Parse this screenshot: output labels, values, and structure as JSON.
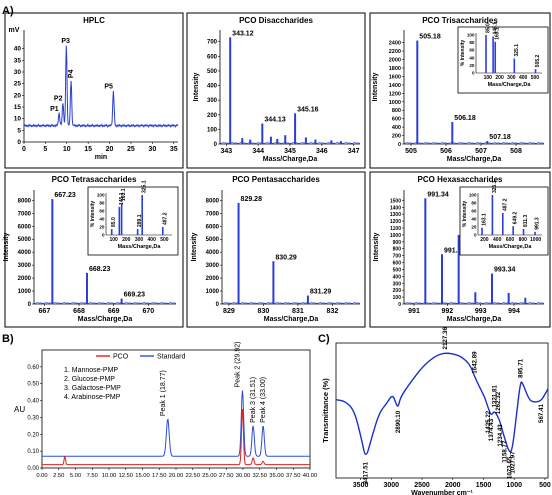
{
  "section_a_label": "A)",
  "section_b_label": "B)",
  "section_c_label": "C)",
  "chart_data": [
    {
      "id": "hplc",
      "type": "line",
      "title": "HPLC",
      "xlabel": "min",
      "ylabel": "mV",
      "xlim": [
        0,
        36
      ],
      "ylim": [
        0,
        48
      ],
      "xticks": [
        0,
        5,
        10,
        15,
        20,
        25,
        30,
        35
      ],
      "yticks": [
        0,
        5,
        10,
        15,
        20,
        25,
        30,
        35,
        40
      ],
      "baseline": 7,
      "peaks": [
        {
          "label": "P1",
          "x": 8.2,
          "y": 12.5
        },
        {
          "label": "P2",
          "x": 9.1,
          "y": 17
        },
        {
          "label": "P3",
          "x": 9.9,
          "y": 41.5
        },
        {
          "label": "P4",
          "x": 11.0,
          "y": 26.5
        },
        {
          "label": "P5",
          "x": 20.9,
          "y": 22
        }
      ]
    },
    {
      "id": "disacch",
      "type": "bar",
      "title": "PCO Disaccharides",
      "xlabel": "Mass/Charge,Da",
      "ylabel": "Intensity",
      "xlim": [
        342.8,
        347.2
      ],
      "ylim": [
        0,
        780
      ],
      "xticks": [
        343,
        344,
        345,
        346,
        347
      ],
      "yticks": [
        0,
        100,
        200,
        300,
        400,
        500,
        600,
        700
      ],
      "peaks": [
        {
          "x": 343.12,
          "y": 730,
          "label": "343.12"
        },
        {
          "x": 344.13,
          "y": 140,
          "label": "344.13"
        },
        {
          "x": 345.16,
          "y": 210,
          "label": "345.16"
        },
        {
          "x": 343.5,
          "y": 40
        },
        {
          "x": 343.75,
          "y": 30
        },
        {
          "x": 344.4,
          "y": 50
        },
        {
          "x": 344.6,
          "y": 35
        },
        {
          "x": 344.85,
          "y": 60
        },
        {
          "x": 345.5,
          "y": 45
        },
        {
          "x": 345.8,
          "y": 30
        },
        {
          "x": 346.3,
          "y": 25
        },
        {
          "x": 346.6,
          "y": 20
        }
      ]
    },
    {
      "id": "trisacch",
      "type": "bar",
      "title": "PCO Trisaccharides",
      "xlabel": "Mass/Charge,Da",
      "ylabel": "Intensity",
      "xlim": [
        504.8,
        508.8
      ],
      "ylim": [
        0,
        2700
      ],
      "xticks": [
        505,
        506,
        507,
        508
      ],
      "yticks": [
        0,
        200,
        400,
        600,
        800,
        1000,
        1200,
        1400,
        1600,
        1800,
        2000,
        2200,
        2400
      ],
      "peaks": [
        {
          "x": 505.18,
          "y": 2450,
          "label": "505.18"
        },
        {
          "x": 506.18,
          "y": 520,
          "label": "506.18"
        },
        {
          "x": 507.18,
          "y": 70,
          "label": "507.18"
        }
      ],
      "inset": {
        "xlabel": "Mass/Charge,Da",
        "ylabel": "% Intensity",
        "xlim": [
          0,
          560
        ],
        "ylim": [
          0,
          105
        ],
        "xticks": [
          100,
          200,
          300,
          400,
          500
        ],
        "yticks": [
          0,
          20,
          40,
          60,
          80,
          100
        ],
        "peaks": [
          {
            "x": 85.0,
            "y": 100,
            "label": "85.0"
          },
          {
            "x": 145.1,
            "y": 96,
            "label": "145.1"
          },
          {
            "x": 163.1,
            "y": 82,
            "label": "163.1"
          },
          {
            "x": 325.1,
            "y": 38,
            "label": "325.1"
          },
          {
            "x": 505.2,
            "y": 10,
            "label": "505.2"
          }
        ]
      }
    },
    {
      "id": "tetrasacch",
      "type": "bar",
      "title": "PCO Tetrasaccharides",
      "xlabel": "Mass/Charge,Da",
      "ylabel": "Intensity",
      "xlim": [
        666.7,
        670.8
      ],
      "ylim": [
        0,
        8800
      ],
      "xticks": [
        667,
        668,
        669,
        670
      ],
      "yticks": [
        0,
        1000,
        2000,
        3000,
        4000,
        5000,
        6000,
        7000,
        8000
      ],
      "peaks": [
        {
          "x": 667.23,
          "y": 8100,
          "label": "667.23"
        },
        {
          "x": 668.23,
          "y": 2400,
          "label": "668.23"
        },
        {
          "x": 669.23,
          "y": 420,
          "label": "669.23"
        }
      ],
      "inset": {
        "xlabel": "Mass/Charge,Da",
        "ylabel": "% Intensity",
        "xlim": [
          40,
          560
        ],
        "ylim": [
          0,
          105
        ],
        "xticks": [
          100,
          200,
          300,
          400,
          500
        ],
        "yticks": [
          0,
          20,
          40,
          60,
          80,
          100
        ],
        "peaks": [
          {
            "x": 85.0,
            "y": 15,
            "label": "85.0"
          },
          {
            "x": 145.1,
            "y": 70,
            "label": "145.1"
          },
          {
            "x": 163.1,
            "y": 80,
            "label": "163.1"
          },
          {
            "x": 289.1,
            "y": 15,
            "label": "289.1"
          },
          {
            "x": 325.1,
            "y": 100,
            "label": "325.1"
          },
          {
            "x": 487.2,
            "y": 20,
            "label": "487.2"
          }
        ]
      }
    },
    {
      "id": "pentasacch",
      "type": "bar",
      "title": "PCO Pentasaccharides",
      "xlabel": "Mass/Charge,Da",
      "ylabel": "Intensity",
      "xlim": [
        828.8,
        832.8
      ],
      "ylim": [
        0,
        8800
      ],
      "xticks": [
        829,
        830,
        831,
        832
      ],
      "yticks": [
        0,
        1000,
        2000,
        3000,
        4000,
        5000,
        6000,
        7000,
        8000
      ],
      "peaks": [
        {
          "x": 829.28,
          "y": 7800,
          "label": "829.28"
        },
        {
          "x": 830.29,
          "y": 3300,
          "label": "830.29"
        },
        {
          "x": 831.29,
          "y": 650,
          "label": "831.29"
        },
        {
          "x": 832.2,
          "y": 60
        }
      ]
    },
    {
      "id": "hexasacch",
      "type": "bar",
      "title": "PCO Hexasaccharides",
      "xlabel": "Mass/Charge,Da",
      "ylabel": "Intensity",
      "xlim": [
        990.7,
        994.9
      ],
      "ylim": [
        0,
        1650
      ],
      "xticks": [
        991,
        992,
        993,
        994
      ],
      "yticks": [
        0,
        100,
        200,
        300,
        400,
        500,
        600,
        700,
        800,
        900,
        1000,
        1100,
        1200,
        1300,
        1400,
        1500
      ],
      "peaks": [
        {
          "x": 991.34,
          "y": 1530,
          "label": "991.34"
        },
        {
          "x": 991.84,
          "y": 720,
          "label": "991.84"
        },
        {
          "x": 992.34,
          "y": 1000,
          "label": "992.34"
        },
        {
          "x": 992.84,
          "y": 170
        },
        {
          "x": 993.34,
          "y": 440,
          "label": "993.34"
        },
        {
          "x": 993.84,
          "y": 160
        },
        {
          "x": 994.34,
          "y": 90
        }
      ],
      "inset": {
        "xlabel": "Mass/Charge,Da",
        "ylabel": "% Intensity",
        "xlim": [
          100,
          1100
        ],
        "ylim": [
          0,
          105
        ],
        "xticks": [
          200,
          400,
          600,
          800,
          1000
        ],
        "yticks": [
          0,
          20,
          40,
          60,
          80,
          100
        ],
        "peaks": [
          {
            "x": 163.1,
            "y": 18,
            "label": "163.1"
          },
          {
            "x": 325.1,
            "y": 100,
            "label": "325.1"
          },
          {
            "x": 487.2,
            "y": 55,
            "label": "487.2"
          },
          {
            "x": 649.2,
            "y": 22,
            "label": "649.2"
          },
          {
            "x": 811.3,
            "y": 15,
            "label": "811.3"
          },
          {
            "x": 991.3,
            "y": 8,
            "label": "991.3"
          }
        ]
      }
    },
    {
      "id": "pmp",
      "type": "line",
      "title": "",
      "xlabel": "",
      "ylabel": "AU",
      "xlim": [
        0,
        40
      ],
      "ylim": [
        0,
        0.7
      ],
      "xticks": [
        0,
        2.5,
        5,
        7.5,
        10,
        12.5,
        15,
        17.5,
        20,
        22.5,
        25,
        27.5,
        30,
        32.5,
        35,
        37.5,
        40
      ],
      "xtick_labels": [
        "0.00",
        "2.50",
        "5.00",
        "7.50",
        "10.00",
        "12.50",
        "15.00",
        "17.50",
        "20.00",
        "22.50",
        "25.00",
        "27.50",
        "30.00",
        "32.50",
        "35.00",
        "37.50",
        "40.00"
      ],
      "yticks": [
        0,
        0.1,
        0.2,
        0.3,
        0.4,
        0.5,
        0.6
      ],
      "ytick_labels": [
        "0.00",
        "0.10",
        "0.20",
        "0.30",
        "0.40",
        "0.50",
        "0.60"
      ],
      "legend": [
        {
          "name": "PCO",
          "color": "#e02020"
        },
        {
          "name": "Standard",
          "color": "#2a4fd8"
        }
      ],
      "notes": [
        "1. Mannose-PMP",
        "2. Glucose-PMP",
        "3. Galactose-PMP",
        "4. Arabinose-PMP"
      ],
      "series": [
        {
          "name": "Standard",
          "color": "#2a4fd8",
          "baseline": 0.07,
          "peaks": [
            {
              "x": 18.77,
              "y": 0.22,
              "w": 0.3
            },
            {
              "x": 29.92,
              "y": 0.39,
              "w": 0.25
            },
            {
              "x": 31.51,
              "y": 0.18,
              "w": 0.25
            },
            {
              "x": 33.0,
              "y": 0.18,
              "w": 0.25
            }
          ]
        },
        {
          "name": "PCO",
          "color": "#e02020",
          "baseline": 0.02,
          "peaks": [
            {
              "x": 3.4,
              "y": 0.05,
              "w": 0.15
            },
            {
              "x": 29.92,
              "y": 0.33,
              "w": 0.2
            },
            {
              "x": 31.51,
              "y": 0.04,
              "w": 0.2
            },
            {
              "x": 33.0,
              "y": 0.02,
              "w": 0.2
            }
          ]
        }
      ],
      "peak_labels": [
        {
          "x": 18.77,
          "text": "Peak 1 (18.77)"
        },
        {
          "x": 29.92,
          "text": "Peak 2 (29.92)"
        },
        {
          "x": 31.51,
          "text": "Peak 3 (31.51)"
        },
        {
          "x": 33.0,
          "text": "Peak 4 (33.00)"
        }
      ]
    },
    {
      "id": "ftir",
      "type": "line",
      "title": "",
      "xlabel": "Wavenumber cm⁻¹",
      "ylabel": "Transmittance (%)",
      "xlim": [
        3900,
        450
      ],
      "xticks": [
        3500,
        3000,
        2500,
        2000,
        1500,
        1000,
        500
      ],
      "ylim": [
        0,
        100
      ],
      "points": [
        [
          3900,
          58
        ],
        [
          3750,
          57
        ],
        [
          3600,
          50
        ],
        [
          3480,
          28
        ],
        [
          3417,
          14
        ],
        [
          3330,
          28
        ],
        [
          3200,
          48
        ],
        [
          3080,
          55
        ],
        [
          2980,
          62
        ],
        [
          2930,
          56
        ],
        [
          2890,
          52
        ],
        [
          2850,
          60
        ],
        [
          2700,
          70
        ],
        [
          2500,
          82
        ],
        [
          2300,
          90
        ],
        [
          2127,
          93
        ],
        [
          1900,
          91
        ],
        [
          1780,
          87
        ],
        [
          1700,
          82
        ],
        [
          1643,
          75
        ],
        [
          1560,
          67
        ],
        [
          1480,
          60
        ],
        [
          1425,
          52
        ],
        [
          1374,
          46
        ],
        [
          1322,
          50
        ],
        [
          1262,
          45
        ],
        [
          1234,
          42
        ],
        [
          1159,
          30
        ],
        [
          1074,
          18
        ],
        [
          1028,
          22
        ],
        [
          960,
          48
        ],
        [
          896,
          72
        ],
        [
          860,
          70
        ],
        [
          760,
          58
        ],
        [
          680,
          56
        ],
        [
          567,
          57
        ],
        [
          500,
          62
        ],
        [
          450,
          66
        ]
      ],
      "annotations": [
        {
          "x": 3417.51,
          "text": "3417.51"
        },
        {
          "x": 2890.1,
          "text": "2890.10"
        },
        {
          "x": 2127.36,
          "text": "2127.36"
        },
        {
          "x": 1642.89,
          "text": "1642.89"
        },
        {
          "x": 1425.22,
          "text": "1425.22"
        },
        {
          "x": 1374.43,
          "text": "1374.43"
        },
        {
          "x": 1321.81,
          "text": "1321.81"
        },
        {
          "x": 1262.32,
          "text": "1262.32"
        },
        {
          "x": 1234.43,
          "text": "1234.43"
        },
        {
          "x": 1158.77,
          "text": "1158.77"
        },
        {
          "x": 1073.65,
          "text": "1073.65"
        },
        {
          "x": 1027.97,
          "text": "1027.97"
        },
        {
          "x": 895.71,
          "text": "895.71"
        },
        {
          "x": 567.41,
          "text": "567.41"
        }
      ]
    }
  ]
}
